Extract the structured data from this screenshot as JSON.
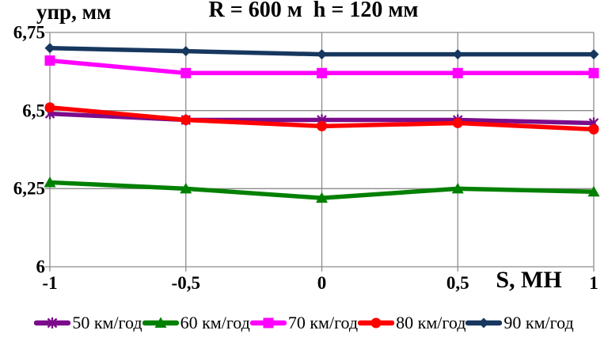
{
  "chart_data": {
    "type": "line",
    "title": "R = 600 м  h = 120 мм",
    "ylabel": "упр, мм",
    "xlabel": "S, МН",
    "x": [
      -1,
      -0.5,
      0,
      0.5,
      1
    ],
    "x_tick_labels": [
      "-1",
      "-0,5",
      "0",
      "0,5",
      "1"
    ],
    "xlim": [
      -1,
      1
    ],
    "y_ticks": [
      6.75,
      6.5,
      6.25,
      6
    ],
    "y_tick_labels": [
      "6,75",
      "6,5",
      "6,25",
      "6"
    ],
    "ylim": [
      6,
      6.75
    ],
    "grid": true,
    "gridline_color": "#8C8C8C",
    "legend_position": "bottom",
    "series": [
      {
        "name": "50 км/год",
        "color": "#7B0C8B",
        "marker": "star",
        "values": [
          6.49,
          6.47,
          6.47,
          6.47,
          6.46
        ]
      },
      {
        "name": "60 км/год",
        "color": "#008000",
        "marker": "triangle",
        "values": [
          6.27,
          6.25,
          6.22,
          6.25,
          6.24
        ]
      },
      {
        "name": "70 км/год",
        "color": "#FF00FF",
        "marker": "square",
        "values": [
          6.66,
          6.62,
          6.62,
          6.62,
          6.62
        ]
      },
      {
        "name": "80 км/год",
        "color": "#FF0000",
        "marker": "circle",
        "values": [
          6.51,
          6.47,
          6.45,
          6.46,
          6.44
        ]
      },
      {
        "name": "90 км/год",
        "color": "#17375E",
        "marker": "diamond",
        "values": [
          6.7,
          6.69,
          6.68,
          6.68,
          6.68
        ]
      }
    ]
  }
}
